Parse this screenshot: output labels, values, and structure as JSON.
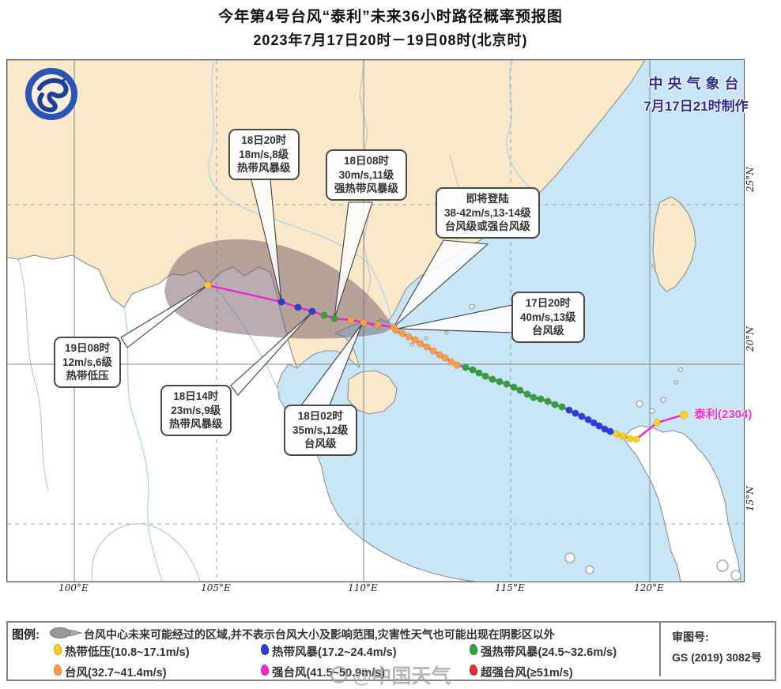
{
  "title": {
    "line1": "今年第4号台风“泰利”未来36小时路径概率预报图",
    "line2": "2023年7月17日20时－19日08时(北京时)"
  },
  "credit": {
    "line1": "中央气象台",
    "line2": "7月17日21时制作"
  },
  "storm_label": "泰利(2304)",
  "axis": {
    "lon": [
      "100°E",
      "105°E",
      "110°E",
      "115°E",
      "120°E"
    ],
    "lat": [
      "25°N",
      "20°N",
      "15°N"
    ]
  },
  "callouts": [
    {
      "id": "c-1820",
      "lines": [
        "18日20时",
        "18m/s,8级",
        "热带风暴级"
      ]
    },
    {
      "id": "c-1808",
      "lines": [
        "18日08时",
        "30m/s,11级",
        "强热带风暴级"
      ]
    },
    {
      "id": "c-landfall",
      "lines": [
        "即将登陆",
        "38-42m/s,13-14级",
        "台风级或强台风级"
      ]
    },
    {
      "id": "c-1720",
      "lines": [
        "17日20时",
        "40m/s,13级",
        "台风级"
      ]
    },
    {
      "id": "c-1908",
      "lines": [
        "19日08时",
        "12m/s,6级",
        "热带低压"
      ]
    },
    {
      "id": "c-1814",
      "lines": [
        "18日14时",
        "23m/s,9级",
        "热带风暴级"
      ]
    },
    {
      "id": "c-1802",
      "lines": [
        "18日02时",
        "35m/s,12级",
        "台风级"
      ]
    }
  ],
  "legend": {
    "label": "图例:",
    "cone_text": "台风中心未来可能经过的区域,并不表示台风大小及影响范围,灾害性天气也可能出现在阴影区以外",
    "items": [
      {
        "label": "热带低压(10.8~17.1m/s)",
        "color": "#fcd116"
      },
      {
        "label": "热带风暴(17.2~24.4m/s)",
        "color": "#2b3cd8"
      },
      {
        "label": "强热带风暴(24.5~32.6m/s)",
        "color": "#2fa33a"
      },
      {
        "label": "台风(32.7~41.4m/s)",
        "color": "#ff9d45"
      },
      {
        "label": "强台风(41.5~50.9m/s)",
        "color": "#f32ad4"
      },
      {
        "label": "超强台风(≥51m/s)",
        "color": "#e62e2e"
      }
    ]
  },
  "approval": {
    "line1": "审图号:",
    "line2": "GS (2019) 3082号"
  },
  "watermark": "@中国天气",
  "track": {
    "line_color": "#f51fd0",
    "level_colors": {
      "TD": "#fcd116",
      "TS": "#2b3cd8",
      "STS": "#2fa33a",
      "TY": "#ff9d45",
      "STY": "#f32ad4",
      "SuperTY": "#e62e2e"
    },
    "points": [
      [
        856,
        449,
        "TD"
      ],
      [
        822,
        459,
        "TD"
      ],
      [
        796,
        480,
        "TD"
      ],
      [
        788,
        479,
        "TD"
      ],
      [
        779,
        476,
        "TD"
      ],
      [
        771,
        473,
        "TD"
      ],
      [
        763,
        470,
        "TS"
      ],
      [
        756,
        467,
        "TS"
      ],
      [
        749,
        463,
        "TS"
      ],
      [
        742,
        459,
        "TS"
      ],
      [
        735,
        455,
        "TS"
      ],
      [
        727,
        451,
        "TS"
      ],
      [
        719,
        447,
        "TS"
      ],
      [
        711,
        443,
        "TS"
      ],
      [
        702,
        439,
        "STS"
      ],
      [
        693,
        436,
        "STS"
      ],
      [
        684,
        432,
        "STS"
      ],
      [
        675,
        429,
        "STS"
      ],
      [
        666,
        427,
        "STS"
      ],
      [
        658,
        423,
        "STS"
      ],
      [
        649,
        418,
        "STS"
      ],
      [
        641,
        414,
        "STS"
      ],
      [
        632,
        410,
        "STS"
      ],
      [
        623,
        407,
        "STS"
      ],
      [
        614,
        404,
        "STS"
      ],
      [
        605,
        400,
        "STS"
      ],
      [
        597,
        396,
        "STS"
      ],
      [
        589,
        392,
        "STS"
      ],
      [
        580,
        389,
        "STS"
      ],
      [
        569,
        386,
        "TY"
      ],
      [
        562,
        382,
        "TY"
      ],
      [
        554,
        377,
        "TY"
      ],
      [
        547,
        373,
        "TY"
      ],
      [
        539,
        368,
        "TY"
      ],
      [
        531,
        363,
        "TY"
      ],
      [
        523,
        359,
        "TY"
      ],
      [
        516,
        354,
        "TY"
      ],
      [
        508,
        350,
        "TY"
      ],
      [
        500,
        346,
        "TY"
      ],
      [
        492,
        342,
        "TY"
      ],
      [
        489,
        338,
        "TY"
      ],
      [
        469,
        335,
        "TY"
      ],
      [
        451,
        332,
        "TY"
      ],
      [
        435,
        329,
        "TY"
      ],
      [
        414,
        327,
        "STS"
      ],
      [
        401,
        323,
        "STS"
      ],
      [
        386,
        318,
        "TS"
      ],
      [
        368,
        313,
        "TS"
      ],
      [
        347,
        306,
        "TS"
      ],
      [
        254,
        285,
        "TD"
      ]
    ]
  }
}
